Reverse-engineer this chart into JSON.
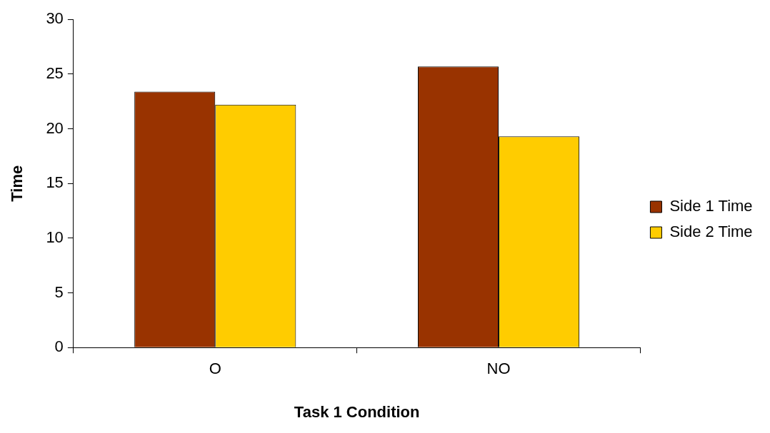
{
  "chart_data": {
    "type": "bar",
    "xlabel": "Task 1 Condition",
    "ylabel": "Time",
    "categories": [
      "O",
      "NO"
    ],
    "series": [
      {
        "name": "Side 1 Time",
        "color": "#993300",
        "values": [
          23.4,
          25.7
        ]
      },
      {
        "name": "Side 2 Time",
        "color": "#ffcc00",
        "values": [
          22.2,
          19.3
        ]
      }
    ],
    "ylim": [
      0,
      30
    ],
    "yticks": [
      0,
      5,
      10,
      15,
      20,
      25,
      30
    ],
    "grid": false,
    "legend": "right"
  }
}
